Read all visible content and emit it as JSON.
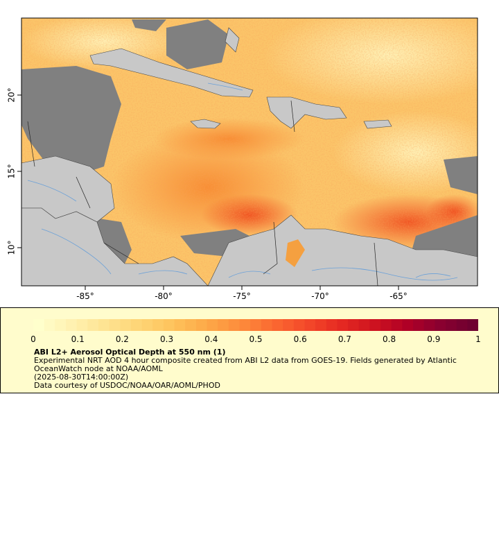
{
  "map": {
    "x_tick_labels": [
      "-85°",
      "-80°",
      "-75°",
      "-70°",
      "-65°"
    ],
    "y_tick_labels": [
      "20°",
      "15°",
      "10°"
    ],
    "colors": {
      "ocean_low": "#fff0b0",
      "ocean_mid": "#fbc060",
      "ocean_high": "#ef5020",
      "land": "#c8c8c8",
      "no_data": "#808080",
      "rivers": "#6aa0d8",
      "borders": "#333333"
    }
  },
  "legend": {
    "colorbar_labels": [
      "0",
      "0.1",
      "0.2",
      "0.3",
      "0.4",
      "0.5",
      "0.6",
      "0.7",
      "0.8",
      "0.9",
      "1"
    ],
    "colorbar_colors": [
      "#ffffcc",
      "#fff1b0",
      "#fee391",
      "#fed576",
      "#fec35c",
      "#fdaa48",
      "#fd8d3c",
      "#fb6a31",
      "#f44a2a",
      "#e62a22",
      "#cf141f",
      "#b10026",
      "#8b0030",
      "#6e0030"
    ],
    "title": "ABI L2+ Aerosol Optical Depth at 550 nm (1)",
    "line1": "Experimental NRT AOD 4 hour composite created from ABI L2 data from GOES-19. Fields generated by Atlantic",
    "line2": "OceanWatch node at NOAA/AOML",
    "line3": "(2025-08-30T14:00:00Z)",
    "line4": "Data courtesy of USDOC/NOAA/OAR/AOML/PHOD"
  }
}
